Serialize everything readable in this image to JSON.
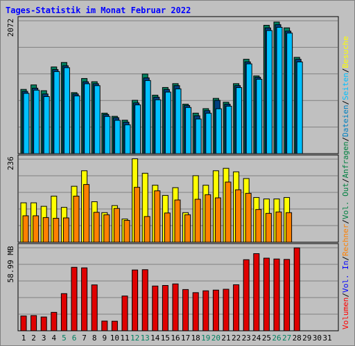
{
  "title": "Tages-Statistik im Monat Februar 2022",
  "chart_data": [
    {
      "type": "bar",
      "panel": "hits",
      "max_label": "2072",
      "ylim": [
        0,
        2072
      ],
      "legend": [
        {
          "text": "Anfragen",
          "color": "#008040"
        },
        {
          "text": "/",
          "color": "#000000"
        },
        {
          "text": "Dateien",
          "color": "#0080c0"
        },
        {
          "text": "/",
          "color": "#000000"
        },
        {
          "text": "Seiten",
          "color": "#00c0ff"
        },
        {
          "text": "/",
          "color": "#000000"
        },
        {
          "text": "Besuche",
          "color": "#ffff00"
        }
      ],
      "categories": [
        "1",
        "2",
        "3",
        "4",
        "5",
        "6",
        "7",
        "8",
        "9",
        "10",
        "11",
        "12",
        "13",
        "14",
        "15",
        "16",
        "17",
        "18",
        "19",
        "20",
        "21",
        "22",
        "23",
        "24",
        "25",
        "26",
        "27",
        "28",
        "29",
        "30",
        "31"
      ],
      "series": [
        {
          "name": "Anfragen",
          "color": "#008060",
          "values": [
            980,
            1050,
            960,
            1330,
            1400,
            930,
            1150,
            1100,
            610,
            560,
            500,
            810,
            1220,
            890,
            1010,
            1070,
            750,
            610,
            680,
            840,
            780,
            1070,
            1450,
            1190,
            1980,
            2030,
            1940,
            1480,
            0,
            0,
            0
          ]
        },
        {
          "name": "Dateien",
          "color": "#004080",
          "values": [
            960,
            1010,
            920,
            1300,
            1360,
            920,
            1110,
            1080,
            600,
            550,
            480,
            780,
            1170,
            870,
            990,
            1050,
            740,
            580,
            660,
            820,
            760,
            1050,
            1420,
            1180,
            1950,
            2000,
            1900,
            1460,
            0,
            0,
            0
          ]
        },
        {
          "name": "Seiten",
          "color": "#00c0ff",
          "values": [
            940,
            990,
            890,
            1280,
            1340,
            900,
            1090,
            1060,
            580,
            520,
            450,
            760,
            1140,
            840,
            960,
            1010,
            720,
            540,
            630,
            700,
            740,
            1030,
            1400,
            1160,
            1920,
            1970,
            1880,
            1430,
            0,
            0,
            0
          ]
        }
      ]
    },
    {
      "type": "bar",
      "panel": "visits",
      "max_label": "236",
      "ylim": [
        0,
        236
      ],
      "legend": [
        {
          "text": "Rechner",
          "color": "#ff8000"
        },
        {
          "text": "/",
          "color": "#000000"
        },
        {
          "text": "Vol. Out",
          "color": "#008040"
        },
        {
          "text": "/",
          "color": "#000000"
        }
      ],
      "categories": [
        "1",
        "2",
        "3",
        "4",
        "5",
        "6",
        "7",
        "8",
        "9",
        "10",
        "11",
        "12",
        "13",
        "14",
        "15",
        "16",
        "17",
        "18",
        "19",
        "20",
        "21",
        "22",
        "23",
        "24",
        "25",
        "26",
        "27",
        "28",
        "29",
        "30",
        "31"
      ],
      "series": [
        {
          "name": "Besuche",
          "color": "#ffff00",
          "values": [
            112,
            112,
            102,
            131,
            99,
            159,
            203,
            115,
            84,
            104,
            66,
            237,
            196,
            162,
            133,
            155,
            84,
            189,
            162,
            203,
            210,
            200,
            181,
            127,
            123,
            123,
            127,
            0,
            0,
            0,
            0
          ]
        },
        {
          "name": "Rechner",
          "color": "#ff8000",
          "values": [
            75,
            75,
            70,
            68,
            69,
            131,
            164,
            85,
            78,
            96,
            62,
            156,
            73,
            146,
            83,
            120,
            78,
            122,
            135,
            126,
            171,
            149,
            139,
            93,
            82,
            86,
            84,
            0,
            0,
            0,
            0
          ]
        }
      ]
    },
    {
      "type": "bar",
      "panel": "volume",
      "max_label": "58.99 MB",
      "ylim": [
        0,
        58.99
      ],
      "legend": [
        {
          "text": "Volumen",
          "color": "#ff0000"
        },
        {
          "text": "/",
          "color": "#000000"
        },
        {
          "text": "Vol. In",
          "color": "#0000ff"
        },
        {
          "text": "/",
          "color": "#000000"
        }
      ],
      "categories": [
        "1",
        "2",
        "3",
        "4",
        "5",
        "6",
        "7",
        "8",
        "9",
        "10",
        "11",
        "12",
        "13",
        "14",
        "15",
        "16",
        "17",
        "18",
        "19",
        "20",
        "21",
        "22",
        "23",
        "24",
        "25",
        "26",
        "27",
        "28",
        "29",
        "30",
        "31"
      ],
      "series": [
        {
          "name": "Volumen",
          "color": "#e00000",
          "values": [
            10.5,
            10.8,
            9.8,
            13.1,
            26.4,
            45.1,
            44.7,
            32.6,
            6.9,
            6.8,
            24.7,
            43.2,
            43.4,
            31.8,
            32.2,
            33.3,
            29.3,
            27.1,
            28.4,
            28.9,
            29.5,
            32.7,
            50.5,
            54.8,
            51.6,
            51.0,
            50.7,
            58.9,
            0,
            0,
            0
          ]
        }
      ]
    }
  ],
  "x_axis": {
    "labels": [
      {
        "text": "1",
        "color": "#000000"
      },
      {
        "text": "2",
        "color": "#000000"
      },
      {
        "text": "3",
        "color": "#000000"
      },
      {
        "text": "4",
        "color": "#000000"
      },
      {
        "text": "5",
        "color": "#008060"
      },
      {
        "text": "6",
        "color": "#008060"
      },
      {
        "text": "7",
        "color": "#000000"
      },
      {
        "text": "8",
        "color": "#000000"
      },
      {
        "text": "9",
        "color": "#000000"
      },
      {
        "text": "10",
        "color": "#000000"
      },
      {
        "text": "11",
        "color": "#000000"
      },
      {
        "text": "12",
        "color": "#008060"
      },
      {
        "text": "13",
        "color": "#008060"
      },
      {
        "text": "14",
        "color": "#000000"
      },
      {
        "text": "15",
        "color": "#000000"
      },
      {
        "text": "16",
        "color": "#000000"
      },
      {
        "text": "17",
        "color": "#000000"
      },
      {
        "text": "18",
        "color": "#000000"
      },
      {
        "text": "19",
        "color": "#008060"
      },
      {
        "text": "20",
        "color": "#008060"
      },
      {
        "text": "21",
        "color": "#000000"
      },
      {
        "text": "22",
        "color": "#000000"
      },
      {
        "text": "23",
        "color": "#000000"
      },
      {
        "text": "24",
        "color": "#000000"
      },
      {
        "text": "25",
        "color": "#000000"
      },
      {
        "text": "26",
        "color": "#008060"
      },
      {
        "text": "27",
        "color": "#008060"
      },
      {
        "text": "28",
        "color": "#000000"
      },
      {
        "text": "29",
        "color": "#000000"
      },
      {
        "text": "30",
        "color": "#000000"
      },
      {
        "text": "31",
        "color": "#000000"
      }
    ]
  }
}
